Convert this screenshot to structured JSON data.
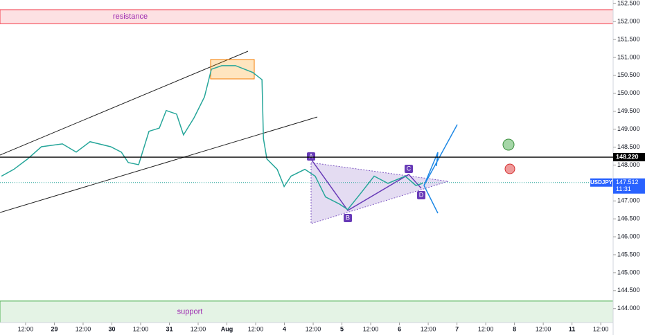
{
  "chart_data": {
    "type": "line",
    "x": [
      -0.84,
      -0.41,
      0.07,
      0.55,
      1.28,
      1.76,
      2.24,
      2.96,
      3.33,
      3.57,
      3.93,
      4.29,
      4.65,
      4.89,
      5.25,
      5.49,
      5.86,
      6.22,
      6.46,
      6.82,
      7.3,
      7.9,
      8.22,
      8.27,
      8.39,
      8.75,
      8.99,
      9.23,
      9.71,
      10.07,
      10.43,
      10.92,
      11.2,
      11.64,
      12.12,
      12.6,
      13.2,
      13.57,
      13.81
    ],
    "series": [
      {
        "name": "USDJPY",
        "color": "#26a69a",
        "values": [
          147.69,
          147.88,
          148.17,
          148.51,
          148.59,
          148.36,
          148.65,
          148.51,
          148.36,
          148.07,
          148.01,
          148.94,
          149.03,
          149.52,
          149.42,
          148.84,
          149.32,
          149.9,
          150.67,
          150.77,
          150.77,
          150.58,
          150.38,
          148.74,
          148.17,
          147.88,
          147.4,
          147.69,
          147.88,
          147.69,
          147.11,
          146.91,
          146.76,
          147.2,
          147.69,
          147.49,
          147.69,
          147.43,
          147.49
        ]
      }
    ],
    "xlim": [
      -0.89,
      20.43
    ],
    "xticks": [
      {
        "value": 0,
        "label": "12:00"
      },
      {
        "value": 1,
        "label": "29"
      },
      {
        "value": 2,
        "label": "12:00"
      },
      {
        "value": 3,
        "label": "30"
      },
      {
        "value": 4,
        "label": "12:00"
      },
      {
        "value": 5,
        "label": "31"
      },
      {
        "value": 6,
        "label": "12:00"
      },
      {
        "value": 7,
        "label": "Aug"
      },
      {
        "value": 8,
        "label": "12:00"
      },
      {
        "value": 9,
        "label": "4"
      },
      {
        "value": 10,
        "label": "12:00"
      },
      {
        "value": 11,
        "label": "5"
      },
      {
        "value": 12,
        "label": "12:00"
      },
      {
        "value": 13,
        "label": "6"
      },
      {
        "value": 14,
        "label": "12:00"
      },
      {
        "value": 15,
        "label": "7"
      },
      {
        "value": 16,
        "label": "12:00"
      },
      {
        "value": 17,
        "label": "8"
      },
      {
        "value": 18,
        "label": "12:00"
      },
      {
        "value": 19,
        "label": "11"
      },
      {
        "value": 20,
        "label": "12:00"
      }
    ],
    "ylim": [
      143.61,
      152.6
    ],
    "yticks": [
      {
        "value": 144,
        "label": "144.000"
      },
      {
        "value": 144.5,
        "label": "144.500"
      },
      {
        "value": 145,
        "label": "145.000"
      },
      {
        "value": 145.5,
        "label": "145.500"
      },
      {
        "value": 146,
        "label": "146.000"
      },
      {
        "value": 146.5,
        "label": "146.500"
      },
      {
        "value": 147,
        "label": "147.000"
      },
      {
        "value": 147.5,
        "label": "147.500"
      },
      {
        "value": 148,
        "label": "148.000"
      },
      {
        "value": 148.5,
        "label": "148.500"
      },
      {
        "value": 149,
        "label": "149.000"
      },
      {
        "value": 149.5,
        "label": "149.500"
      },
      {
        "value": 150,
        "label": "150.000"
      },
      {
        "value": 150.5,
        "label": "150.500"
      },
      {
        "value": 151,
        "label": "151.000"
      },
      {
        "value": 151.5,
        "label": "151.500"
      },
      {
        "value": 152,
        "label": "152.000"
      },
      {
        "value": 152.5,
        "label": "152.500"
      }
    ],
    "resistance_zone": {
      "label": "resistance",
      "range": [
        151.94,
        152.33
      ]
    },
    "support_zone": {
      "label": "support",
      "range": [
        143.61,
        144.21
      ]
    },
    "horizontal_line": {
      "value": 148.22,
      "label": "148.220"
    },
    "last_price": {
      "symbol": "USDJPY",
      "value": 147.512,
      "label": "147.512",
      "time": "11:31"
    },
    "pattern_points": [
      "A",
      "B",
      "C",
      "D"
    ]
  }
}
